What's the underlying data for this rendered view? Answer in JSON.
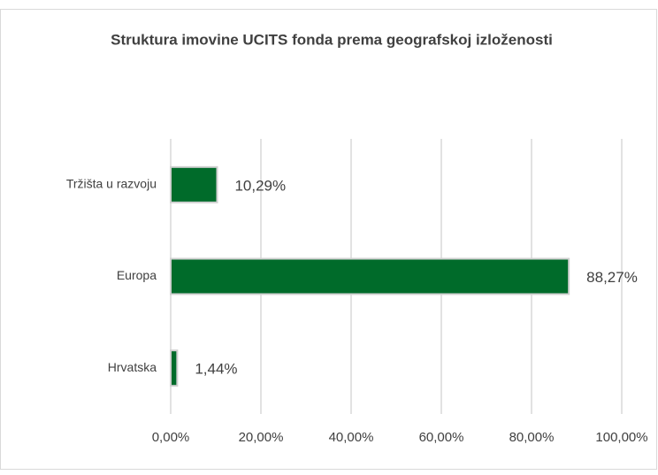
{
  "chart_data": {
    "type": "barh",
    "title": "Struktura imovine UCITS fonda prema geografskoj izloženosti",
    "categories": [
      "Tržišta u razvoju",
      "Europa",
      "Hrvatska"
    ],
    "values": [
      10.29,
      88.27,
      1.44
    ],
    "value_labels": [
      "10,29%",
      "88,27%",
      "1,44%"
    ],
    "color": "#006b2a",
    "xlim": [
      0,
      100
    ],
    "xticks": [
      {
        "value": 0,
        "label": "0,00%"
      },
      {
        "value": 20,
        "label": "20,00%"
      },
      {
        "value": 40,
        "label": "40,00%"
      },
      {
        "value": 60,
        "label": "60,00%"
      },
      {
        "value": 80,
        "label": "80,00%"
      },
      {
        "value": 100,
        "label": "100,00%"
      }
    ],
    "grid": true
  }
}
